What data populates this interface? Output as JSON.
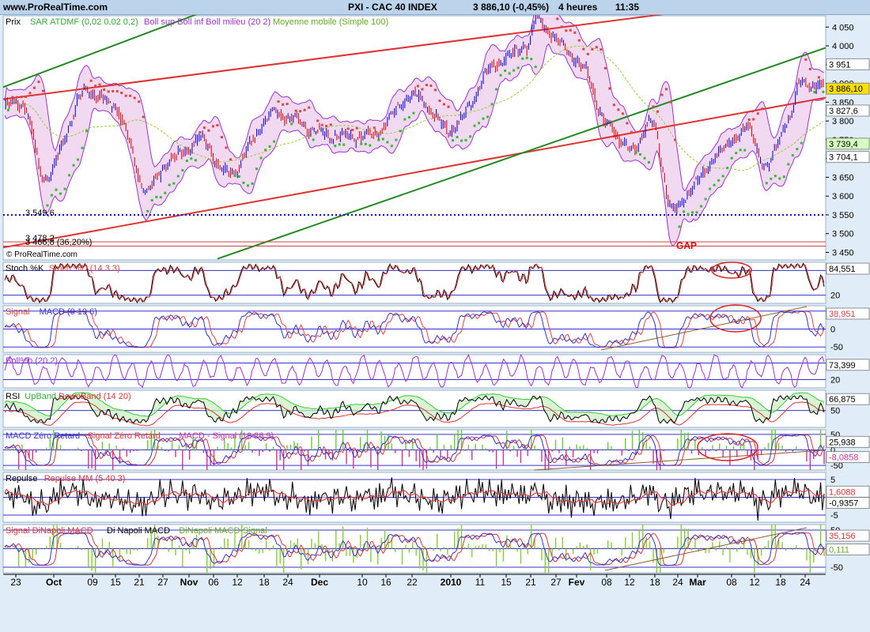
{
  "header": {
    "site": "www.ProRealTime.com",
    "instrument": "PXI - CAC 40 INDEX",
    "last": "3 886,10 (-0,45%)",
    "period": "4 heures",
    "time": "11:35"
  },
  "colors": {
    "bg": "#ffffff",
    "frame": "#e0ecf8",
    "up_bar": "#0000cc",
    "down_bar": "#cc0000",
    "sar_up": "#33bb33",
    "sar_down": "#dd4444",
    "bollinger": "#9933cc",
    "bollinger_fill": "#f2d9f2",
    "ma": "#99cc33",
    "channel_red": "#dd3333",
    "channel_green": "#228822",
    "dotted": "#0000ee"
  },
  "chart_data": [
    {
      "type": "line",
      "name": "price",
      "legend": [
        "Prix",
        "SAR ATDMF (0,02 0,02 0,2)",
        "Boll sup Boll inf Boll milieu (20 2)",
        "Moyenne mobile (Simple 100)"
      ],
      "ylim": [
        3430,
        4080
      ],
      "yticks": [
        "4 050",
        "4 000",
        "3 950",
        "3 900",
        "3 850",
        "3 800",
        "3 750",
        "3 700",
        "3 650",
        "3 600",
        "3 550",
        "3 500",
        "3 450"
      ],
      "price_badges": [
        "3 951",
        "3 886,10",
        "3 827,6",
        "3 739,4",
        "3 704,1"
      ],
      "level_labels": [
        "3 549,6",
        "3 478,2",
        "3 466,8 (36,20%)"
      ],
      "levels": [
        3549.6,
        3478.2,
        3466.8
      ],
      "annotation": "GAP",
      "copyright": "© ProRealTime.com",
      "key_points": [
        [
          0,
          3840
        ],
        [
          20,
          3850
        ],
        [
          45,
          3650
        ],
        [
          95,
          3880
        ],
        [
          125,
          3840
        ],
        [
          163,
          3620
        ],
        [
          193,
          3700
        ],
        [
          225,
          3750
        ],
        [
          255,
          3660
        ],
        [
          310,
          3820
        ],
        [
          375,
          3760
        ],
        [
          420,
          3760
        ],
        [
          468,
          3870
        ],
        [
          510,
          3780
        ],
        [
          570,
          3960
        ],
        [
          600,
          4000
        ],
        [
          610,
          4070
        ],
        [
          640,
          4000
        ],
        [
          665,
          3940
        ],
        [
          690,
          3790
        ],
        [
          720,
          3720
        ],
        [
          740,
          3800
        ],
        [
          768,
          3560
        ],
        [
          795,
          3640
        ],
        [
          820,
          3720
        ],
        [
          850,
          3780
        ],
        [
          875,
          3680
        ],
        [
          900,
          3810
        ],
        [
          915,
          3910
        ],
        [
          930,
          3890
        ]
      ]
    },
    {
      "type": "line",
      "name": "stochastic",
      "legend": [
        "Stoch %K",
        "Stoch %D (14 3 3)"
      ],
      "yticks": [
        "80",
        "20"
      ],
      "values_label": "84,551",
      "ylim": [
        0,
        100
      ]
    },
    {
      "type": "line",
      "name": "macd",
      "legend": [
        "Signal",
        "MACD (9 19 6)"
      ],
      "yticks": [
        "50",
        "0",
        "-50"
      ],
      "values_label": "38,951",
      "ylim": [
        -65,
        65
      ]
    },
    {
      "type": "line",
      "name": "boll_b",
      "legend": [
        "Boll%b (20 2)"
      ],
      "yticks": [
        "80",
        "20"
      ],
      "values_label": "73,399",
      "ylim": [
        -10,
        110
      ]
    },
    {
      "type": "area",
      "name": "rsi",
      "legend": [
        "RSI",
        "UpBand",
        "DownBand (14 20)"
      ],
      "yticks": [
        "50"
      ],
      "values_label": "66,875",
      "ylim": [
        25,
        80
      ]
    },
    {
      "type": "line",
      "name": "macd_zero_lag",
      "legend": [
        "MACD Zéro Retard",
        "Signal Zéro Retard",
        "MACD - Signal (12 26 9)"
      ],
      "yticks": [
        "50",
        "0",
        "-50"
      ],
      "values_labels": [
        "25,938",
        "-8,0858"
      ],
      "ylim": [
        -65,
        65
      ]
    },
    {
      "type": "line",
      "name": "repulse",
      "legend": [
        "Repulse",
        "Repulse MM (5 40 3)"
      ],
      "yticks": [
        "5",
        "0",
        "-5"
      ],
      "values_labels": [
        "1,6088",
        "-0,9357"
      ],
      "ylim": [
        -7,
        7
      ]
    },
    {
      "type": "line",
      "name": "dinapoli",
      "legend": [
        "Signal DiNapoli MACD",
        "Di Napoli MACD",
        "DiNapoli MACD-Signal"
      ],
      "yticks": [
        "50",
        "0",
        "-50"
      ],
      "values_labels": [
        "35,156",
        "0,111"
      ],
      "ylim": [
        -65,
        65
      ]
    }
  ],
  "x_axis": {
    "labels": [
      {
        "t": "23",
        "b": false
      },
      {
        "t": "Oct",
        "b": true
      },
      {
        "t": "09",
        "b": false
      },
      {
        "t": "15",
        "b": false
      },
      {
        "t": "21",
        "b": false
      },
      {
        "t": "27",
        "b": false
      },
      {
        "t": "Nov",
        "b": true
      },
      {
        "t": "06",
        "b": false
      },
      {
        "t": "12",
        "b": false
      },
      {
        "t": "18",
        "b": false
      },
      {
        "t": "24",
        "b": false
      },
      {
        "t": "Dec",
        "b": true
      },
      {
        "t": "10",
        "b": false
      },
      {
        "t": "16",
        "b": false
      },
      {
        "t": "22",
        "b": false
      },
      {
        "t": "2010",
        "b": true
      },
      {
        "t": "11",
        "b": false
      },
      {
        "t": "15",
        "b": false
      },
      {
        "t": "21",
        "b": false
      },
      {
        "t": "27",
        "b": false
      },
      {
        "t": "Fev",
        "b": true
      },
      {
        "t": "08",
        "b": false
      },
      {
        "t": "12",
        "b": false
      },
      {
        "t": "18",
        "b": false
      },
      {
        "t": "24",
        "b": false
      },
      {
        "t": "Mar",
        "b": true
      },
      {
        "t": "08",
        "b": false
      },
      {
        "t": "12",
        "b": false
      },
      {
        "t": "18",
        "b": false
      },
      {
        "t": "24",
        "b": false
      }
    ]
  }
}
